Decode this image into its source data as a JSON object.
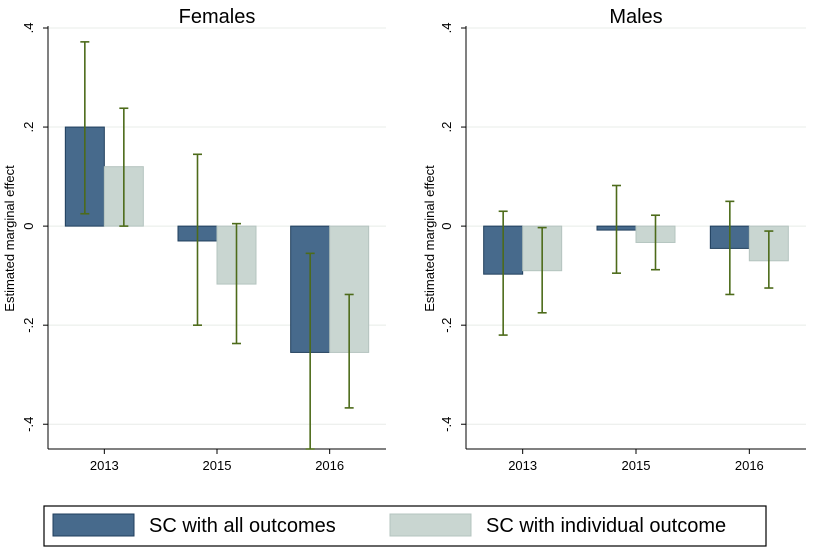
{
  "colors": {
    "series1": "#476a8c",
    "series1_stroke": "#1f3e5c",
    "series2": "#c9d6d1",
    "series2_stroke": "#b4c4bf",
    "error_bar": "#4d6b1a",
    "grid": "#e8ece8",
    "axis": "#000000"
  },
  "chart_data": [
    {
      "type": "bar",
      "title": "Females",
      "ylabel": "Estimated marginal effect",
      "xlabel": "",
      "categories": [
        "2013",
        "2015",
        "2016"
      ],
      "ylim": [
        -0.45,
        0.4
      ],
      "yticks": [
        -0.4,
        -0.2,
        0,
        0.2,
        0.4
      ],
      "ytick_labels": [
        "-.4",
        "-.2",
        "0",
        ".2",
        ".4"
      ],
      "grid": true,
      "series": [
        {
          "name": "SC with all outcomes",
          "values": [
            0.2,
            -0.03,
            -0.255
          ],
          "ci_low": [
            0.025,
            -0.2,
            -0.45
          ],
          "ci_high": [
            0.372,
            0.145,
            -0.055
          ]
        },
        {
          "name": "SC with individual outcome",
          "values": [
            0.12,
            -0.117,
            -0.255
          ],
          "ci_low": [
            0.0,
            -0.237,
            -0.367
          ],
          "ci_high": [
            0.238,
            0.005,
            -0.138
          ]
        }
      ]
    },
    {
      "type": "bar",
      "title": "Males",
      "ylabel": "Estimated marginal effect",
      "xlabel": "",
      "categories": [
        "2013",
        "2015",
        "2016"
      ],
      "ylim": [
        -0.45,
        0.4
      ],
      "yticks": [
        -0.4,
        -0.2,
        0,
        0.2,
        0.4
      ],
      "ytick_labels": [
        "-.4",
        "-.2",
        "0",
        ".2",
        ".4"
      ],
      "grid": true,
      "series": [
        {
          "name": "SC with all outcomes",
          "values": [
            -0.097,
            -0.008,
            -0.045
          ],
          "ci_low": [
            -0.22,
            -0.095,
            -0.138
          ],
          "ci_high": [
            0.03,
            0.082,
            0.05
          ]
        },
        {
          "name": "SC with individual outcome",
          "values": [
            -0.09,
            -0.033,
            -0.07
          ],
          "ci_low": [
            -0.175,
            -0.088,
            -0.125
          ],
          "ci_high": [
            -0.003,
            0.022,
            -0.01
          ]
        }
      ]
    }
  ],
  "legend": {
    "position": "bottom",
    "items": [
      "SC with all outcomes",
      "SC with individual outcome"
    ]
  }
}
